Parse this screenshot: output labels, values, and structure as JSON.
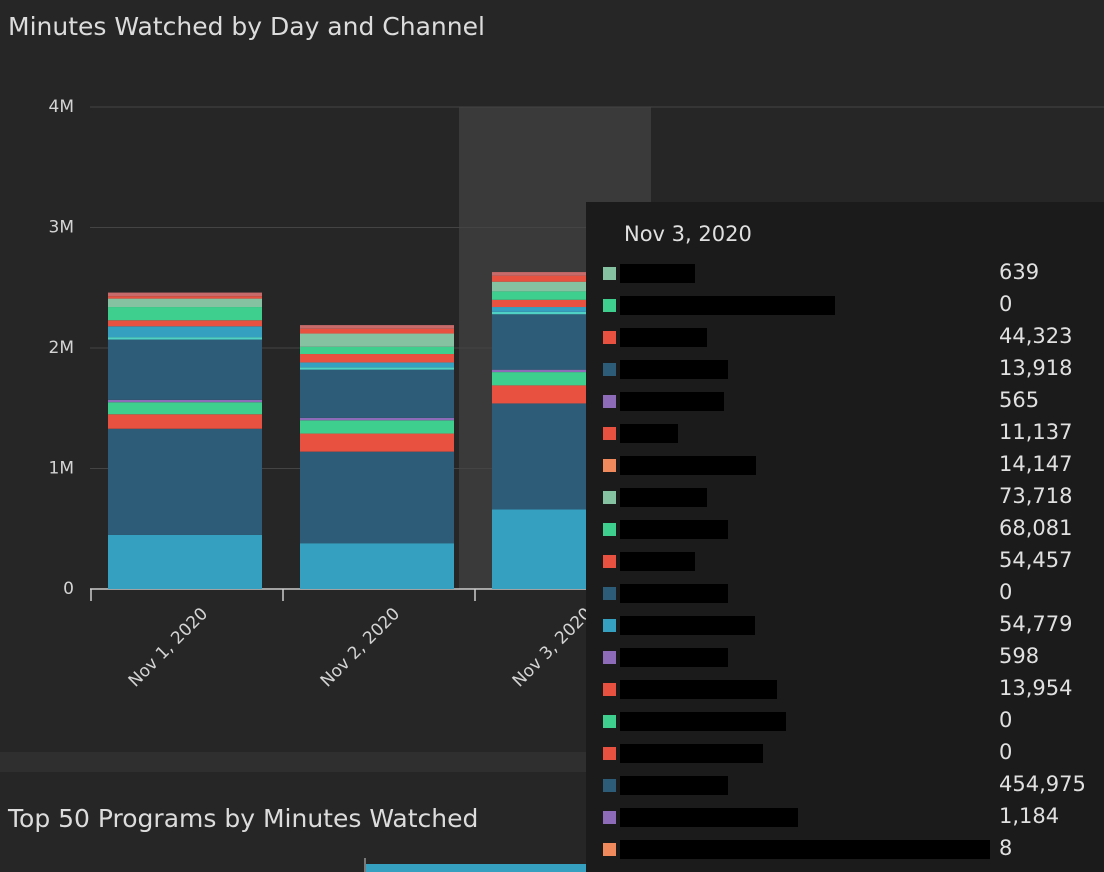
{
  "chart_data": {
    "type": "bar",
    "stacked": true,
    "title": "Minutes Watched by Day and Channel",
    "categories": [
      "Nov 1, 2020",
      "Nov 2, 2020",
      "Nov 3, 2020"
    ],
    "ylim": [
      0,
      4000000
    ],
    "yticks": [
      0,
      {
        "value": 1000000,
        "label": "1M"
      },
      {
        "value": 2000000,
        "label": "2M"
      },
      {
        "value": 3000000,
        "label": "3M"
      },
      {
        "value": 4000000,
        "label": "4M"
      }
    ],
    "grid": true,
    "highlight_category": 2,
    "series": [
      {
        "color": "#36a0c0",
        "values": [
          450000,
          380000,
          660000
        ]
      },
      {
        "color": "#2c5c78",
        "values": [
          880000,
          760000,
          880000
        ]
      },
      {
        "color": "#e8503f",
        "values": [
          120000,
          150000,
          150000
        ]
      },
      {
        "color": "#3ecf8e",
        "values": [
          100000,
          110000,
          110000
        ]
      },
      {
        "color": "#8e6bb8",
        "values": [
          20000,
          20000,
          20000
        ]
      },
      {
        "color": "#2c5c78",
        "values": [
          500000,
          400000,
          460000
        ]
      },
      {
        "color": "#4fd1c5",
        "values": [
          20000,
          20000,
          20000
        ]
      },
      {
        "color": "#36a0c0",
        "values": [
          90000,
          40000,
          40000
        ]
      },
      {
        "color": "#e8503f",
        "values": [
          50000,
          70000,
          60000
        ]
      },
      {
        "color": "#3ecf8e",
        "values": [
          110000,
          60000,
          70000
        ]
      },
      {
        "color": "#85c2a2",
        "values": [
          70000,
          110000,
          80000
        ]
      },
      {
        "color": "#e8503f",
        "values": [
          20000,
          40000,
          50000
        ]
      },
      {
        "color": "#c96a6a",
        "values": [
          30000,
          30000,
          30000
        ]
      }
    ]
  },
  "tooltip": {
    "title": "Nov 3, 2020",
    "rows": [
      {
        "color": "#85c2a2",
        "value": "639"
      },
      {
        "color": "#3ecf8e",
        "value": "0"
      },
      {
        "color": "#e8503f",
        "value": "44,323"
      },
      {
        "color": "#2c5c78",
        "value": "13,918"
      },
      {
        "color": "#8e6bb8",
        "value": "565"
      },
      {
        "color": "#e8503f",
        "value": "11,137"
      },
      {
        "color": "#f08a5d",
        "value": "14,147"
      },
      {
        "color": "#85c2a2",
        "value": "73,718"
      },
      {
        "color": "#3ecf8e",
        "value": "68,081"
      },
      {
        "color": "#e8503f",
        "value": "54,457"
      },
      {
        "color": "#2c5c78",
        "value": "0"
      },
      {
        "color": "#36a0c0",
        "value": "54,779"
      },
      {
        "color": "#8e6bb8",
        "value": "598"
      },
      {
        "color": "#e8503f",
        "value": "13,954"
      },
      {
        "color": "#3ecf8e",
        "value": "0"
      },
      {
        "color": "#e8503f",
        "value": "0"
      },
      {
        "color": "#2c5c78",
        "value": "454,975"
      },
      {
        "color": "#8e6bb8",
        "value": "1,184"
      },
      {
        "color": "#f08a5d",
        "value": "8"
      }
    ]
  },
  "second_panel": {
    "title": "Top 50 Programs by Minutes Watched"
  }
}
